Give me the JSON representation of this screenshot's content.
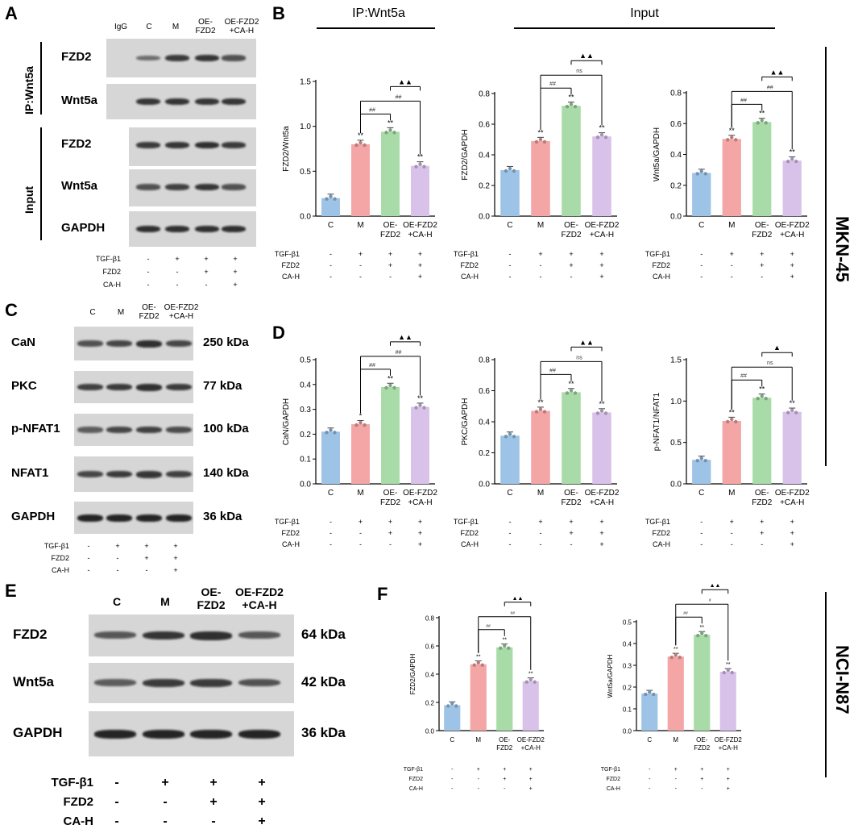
{
  "panels": {
    "A": "A",
    "B": "B",
    "C": "C",
    "D": "D",
    "E": "E",
    "F": "F"
  },
  "panelA": {
    "lanes": [
      "IgG",
      "C",
      "M",
      "OE-\nFZD2",
      "OE-FZD2\n+CA-H"
    ],
    "ip_label": "IP:Wnt5a",
    "input_label": "Input",
    "rows": [
      "FZD2",
      "Wnt5a",
      "FZD2",
      "Wnt5a",
      "GAPDH"
    ],
    "treatment": {
      "labels": [
        "TGF-β1",
        "FZD2",
        "CA-H"
      ],
      "signs": [
        [
          "-",
          "+",
          "+",
          "+"
        ],
        [
          "-",
          "-",
          "+",
          "+"
        ],
        [
          "-",
          "-",
          "-",
          "+"
        ]
      ]
    }
  },
  "panelB": {
    "ip_header": "IP:Wnt5a",
    "input_header": "Input"
  },
  "panelC": {
    "lanes": [
      "C",
      "M",
      "OE-\nFZD2",
      "OE-FZD2\n+CA-H"
    ],
    "rows": [
      "CaN",
      "PKC",
      "p-NFAT1",
      "NFAT1",
      "GAPDH"
    ],
    "kda": [
      "250 kDa",
      "77 kDa",
      "100 kDa",
      "140 kDa",
      "36 kDa"
    ]
  },
  "panelE": {
    "lanes": [
      "C",
      "M",
      "OE-\nFZD2",
      "OE-FZD2\n+CA-H"
    ],
    "rows": [
      "FZD2",
      "Wnt5a",
      "GAPDH"
    ],
    "kda": [
      "64 kDa",
      "42 kDa",
      "36 kDa"
    ]
  },
  "cell_lines": {
    "top": "MKN-45",
    "bottom": "NCI-N87"
  },
  "chart_data": [
    {
      "type": "bar",
      "panel": "B",
      "categories": [
        "C",
        "M",
        "OE-FZD2",
        "OE-FZD2+CA-H"
      ],
      "values": [
        0.2,
        0.8,
        0.94,
        0.56
      ],
      "ylabel": "FZD2/Wnt5a",
      "ylim": [
        0,
        1.5
      ],
      "yticks": [
        "0.0",
        "0.5",
        "1.0",
        "1.5"
      ],
      "sig": [
        "",
        "**",
        "**",
        "**"
      ],
      "brackets": [
        {
          "from": 1,
          "to": 2,
          "label": "##"
        },
        {
          "from": 1,
          "to": 3,
          "label": "##"
        },
        {
          "from": 2,
          "to": 3,
          "label": "▲▲"
        }
      ]
    },
    {
      "type": "bar",
      "panel": "B",
      "categories": [
        "C",
        "M",
        "OE-FZD2",
        "OE-FZD2+CA-H"
      ],
      "values": [
        0.3,
        0.49,
        0.72,
        0.52
      ],
      "ylabel": "FZD2/GAPDH",
      "ylim": [
        0,
        0.8
      ],
      "yticks": [
        "0.0",
        "0.2",
        "0.4",
        "0.6",
        "0.8"
      ],
      "sig": [
        "",
        "**",
        "**",
        "**"
      ],
      "brackets": [
        {
          "from": 1,
          "to": 2,
          "label": "##"
        },
        {
          "from": 1,
          "to": 3,
          "label": "ns"
        },
        {
          "from": 2,
          "to": 3,
          "label": "▲▲"
        }
      ]
    },
    {
      "type": "bar",
      "panel": "B",
      "categories": [
        "C",
        "M",
        "OE-FZD2",
        "OE-FZD2+CA-H"
      ],
      "values": [
        0.28,
        0.5,
        0.61,
        0.36
      ],
      "ylabel": "Wnt5a/GAPDH",
      "ylim": [
        0,
        0.8
      ],
      "yticks": [
        "0.0",
        "0.2",
        "0.4",
        "0.6",
        "0.8"
      ],
      "sig": [
        "",
        "**",
        "**",
        "**"
      ],
      "brackets": [
        {
          "from": 1,
          "to": 2,
          "label": "##"
        },
        {
          "from": 1,
          "to": 3,
          "label": "##"
        },
        {
          "from": 2,
          "to": 3,
          "label": "▲▲"
        }
      ]
    },
    {
      "type": "bar",
      "panel": "D",
      "categories": [
        "C",
        "M",
        "OE-FZD2",
        "OE-FZD2+CA-H"
      ],
      "values": [
        0.21,
        0.24,
        0.39,
        0.31
      ],
      "ylabel": "CaN/GAPDH",
      "ylim": [
        0,
        0.5
      ],
      "yticks": [
        "0.0",
        "0.1",
        "0.2",
        "0.3",
        "0.4",
        "0.5"
      ],
      "sig": [
        "",
        "*",
        "**",
        "**"
      ],
      "brackets": [
        {
          "from": 1,
          "to": 2,
          "label": "##"
        },
        {
          "from": 1,
          "to": 3,
          "label": "##"
        },
        {
          "from": 2,
          "to": 3,
          "label": "▲▲"
        }
      ]
    },
    {
      "type": "bar",
      "panel": "D",
      "categories": [
        "C",
        "M",
        "OE-FZD2",
        "OE-FZD2+CA-H"
      ],
      "values": [
        0.31,
        0.47,
        0.59,
        0.46
      ],
      "ylabel": "PKC/GAPDH",
      "ylim": [
        0,
        0.8
      ],
      "yticks": [
        "0.0",
        "0.2",
        "0.4",
        "0.6",
        "0.8"
      ],
      "sig": [
        "",
        "**",
        "**",
        "**"
      ],
      "brackets": [
        {
          "from": 1,
          "to": 2,
          "label": "##"
        },
        {
          "from": 1,
          "to": 3,
          "label": "ns"
        },
        {
          "from": 2,
          "to": 3,
          "label": "▲▲"
        }
      ]
    },
    {
      "type": "bar",
      "panel": "D",
      "categories": [
        "C",
        "M",
        "OE-FZD2",
        "OE-FZD2+CA-H"
      ],
      "values": [
        0.29,
        0.76,
        1.04,
        0.87
      ],
      "ylabel": "p-NFAT1/NFAT1",
      "ylim": [
        0,
        1.5
      ],
      "yticks": [
        "0.0",
        "0.5",
        "1.0",
        "1.5"
      ],
      "sig": [
        "",
        "**",
        "**",
        "**"
      ],
      "brackets": [
        {
          "from": 1,
          "to": 2,
          "label": "##"
        },
        {
          "from": 1,
          "to": 3,
          "label": "ns"
        },
        {
          "from": 2,
          "to": 3,
          "label": "▲"
        }
      ]
    },
    {
      "type": "bar",
      "panel": "F",
      "categories": [
        "C",
        "M",
        "OE-FZD2",
        "OE-FZD2+CA-H"
      ],
      "values": [
        0.18,
        0.47,
        0.59,
        0.35
      ],
      "ylabel": "FZD2/GAPDH",
      "ylim": [
        0,
        0.8
      ],
      "yticks": [
        "0.0",
        "0.2",
        "0.4",
        "0.6",
        "0.8"
      ],
      "sig": [
        "",
        "**",
        "**",
        "**"
      ],
      "brackets": [
        {
          "from": 1,
          "to": 2,
          "label": "##"
        },
        {
          "from": 1,
          "to": 3,
          "label": "##"
        },
        {
          "from": 2,
          "to": 3,
          "label": "▲▲"
        }
      ]
    },
    {
      "type": "bar",
      "panel": "F",
      "categories": [
        "C",
        "M",
        "OE-FZD2",
        "OE-FZD2+CA-H"
      ],
      "values": [
        0.17,
        0.34,
        0.44,
        0.27
      ],
      "ylabel": "Wnt5a/GAPDH",
      "ylim": [
        0,
        0.5
      ],
      "yticks": [
        "0.0",
        "0.1",
        "0.2",
        "0.3",
        "0.4",
        "0.5"
      ],
      "sig": [
        "",
        "**",
        "**",
        "**"
      ],
      "brackets": [
        {
          "from": 1,
          "to": 2,
          "label": "##"
        },
        {
          "from": 1,
          "to": 3,
          "label": "#"
        },
        {
          "from": 2,
          "to": 3,
          "label": "▲▲"
        }
      ]
    }
  ],
  "chart_labels": {
    "xcats": [
      "C",
      "M",
      "OE-\nFZD2",
      "OE-FZD2\n+CA-H"
    ],
    "treat_labels": [
      "TGF-β1",
      "FZD2",
      "CA-H"
    ],
    "treat_signs": [
      [
        "-",
        "+",
        "+",
        "+"
      ],
      [
        "-",
        "-",
        "+",
        "+"
      ],
      [
        "-",
        "-",
        "-",
        "+"
      ]
    ]
  },
  "colors": {
    "C": "#9dc3e6",
    "M": "#f4a5a5",
    "OE-FZD2": "#a8dba8",
    "OE-FZD2+CA-H": "#d9c2ea"
  }
}
